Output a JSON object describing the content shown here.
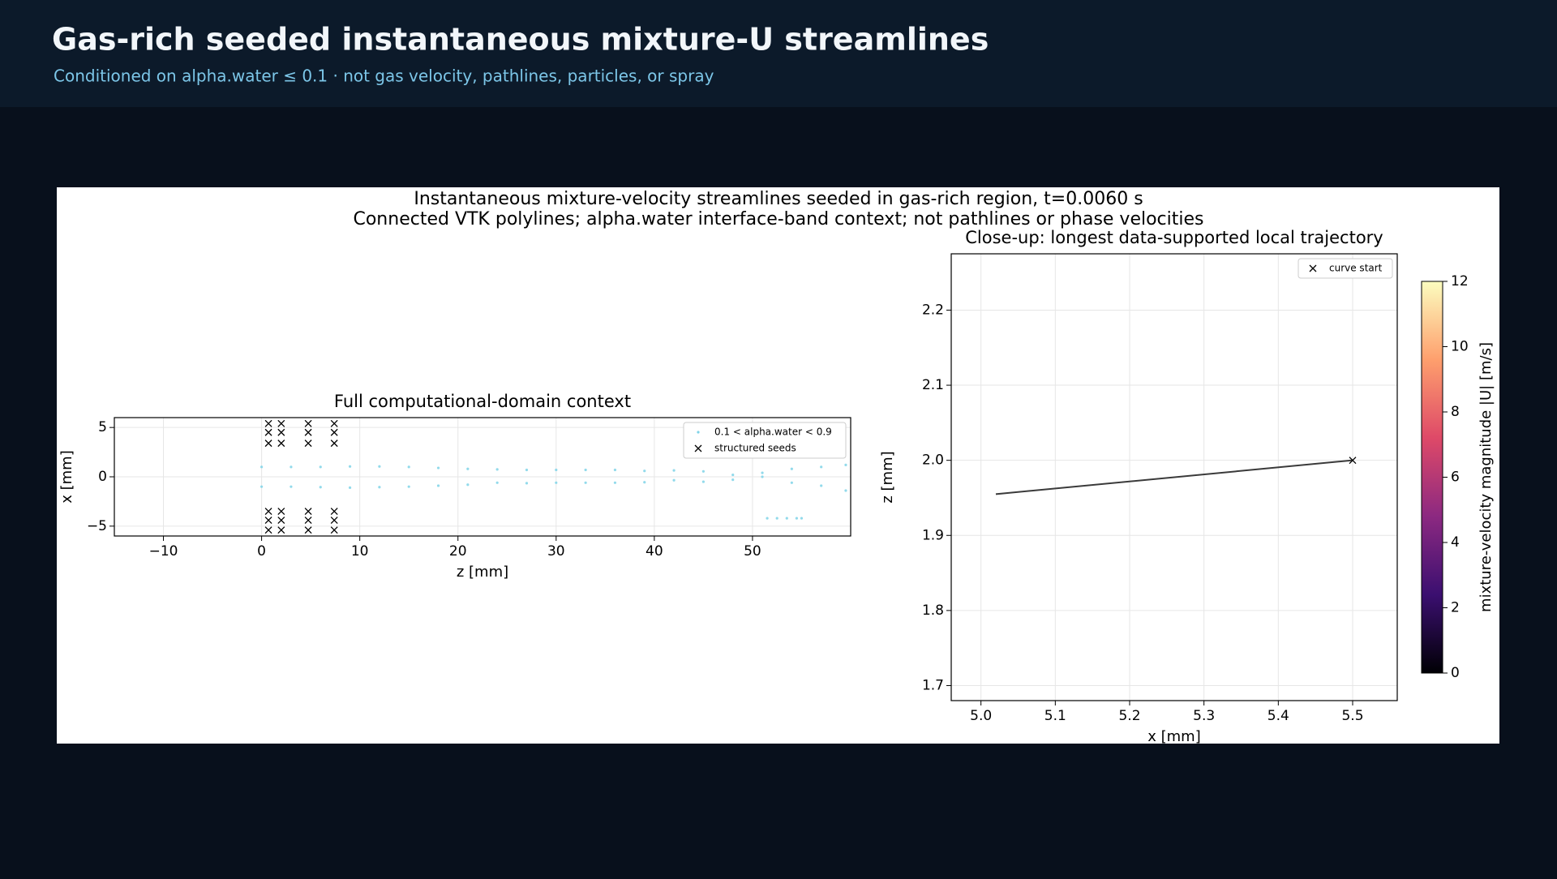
{
  "header": {
    "title": "Gas-rich seeded instantaneous mixture-U streamlines",
    "subtitle": "Conditioned on alpha.water ≤ 0.1 · not gas velocity, pathlines, particles, or spray"
  },
  "figure": {
    "title": [
      "Instantaneous mixture-velocity streamlines seeded in gas-rich region, t=0.0060 s",
      "Connected VTK polylines; alpha.water interface-band context; not pathlines or phase velocities"
    ]
  },
  "chart_data": [
    {
      "type": "scatter",
      "title": "Full computational-domain context",
      "xlabel": "z [mm]",
      "ylabel": "x [mm]",
      "xlim": [
        -15,
        60
      ],
      "ylim": [
        -6,
        6
      ],
      "xticks": [
        {
          "value": -10,
          "label": "−10"
        },
        0,
        10,
        20,
        30,
        40,
        50
      ],
      "yticks": [
        {
          "value": -5,
          "label": "−5"
        },
        0,
        5
      ],
      "grid": true,
      "legend": "upper right",
      "series": [
        {
          "name": "0.1 < alpha.water < 0.9",
          "color": "#7fd3e8",
          "marker": "o",
          "x": [
            0,
            3,
            6,
            9,
            12,
            15,
            18,
            21,
            24,
            27,
            30,
            33,
            36,
            39,
            42,
            45,
            48,
            51,
            54,
            57,
            59.5,
            0,
            3,
            6,
            9,
            12,
            15,
            18,
            21,
            24,
            27,
            30,
            33,
            36,
            39,
            42,
            45,
            48,
            51,
            54,
            57,
            59.5,
            51.5,
            52.5,
            53.5,
            54.5,
            55
          ],
          "values": [
            1.0,
            1.0,
            1.0,
            1.05,
            1.05,
            1.0,
            0.9,
            0.8,
            0.75,
            0.7,
            0.7,
            0.7,
            0.7,
            0.6,
            0.65,
            0.55,
            0.2,
            0.4,
            0.8,
            1.0,
            1.2,
            -1.0,
            -1.0,
            -1.05,
            -1.1,
            -1.05,
            -1.0,
            -0.9,
            -0.8,
            -0.6,
            -0.65,
            -0.6,
            -0.6,
            -0.6,
            -0.55,
            -0.35,
            -0.5,
            -0.3,
            0.0,
            -0.6,
            -0.9,
            -1.4,
            -4.2,
            -4.2,
            -4.2,
            -4.2,
            -4.2
          ]
        },
        {
          "name": "structured seeds",
          "color": "#000000",
          "marker": "x",
          "x": [
            0.7,
            2.0,
            4.75,
            7.4,
            0.7,
            2.0,
            4.75,
            7.4,
            0.7,
            2.0,
            4.75,
            7.4,
            0.7,
            2.0,
            4.75,
            7.4,
            0.7,
            2.0,
            4.75,
            7.4,
            0.7,
            2.0,
            4.75,
            7.4
          ],
          "values": [
            5.4,
            5.4,
            5.4,
            5.4,
            4.5,
            4.5,
            4.5,
            4.5,
            3.4,
            3.4,
            3.4,
            3.4,
            -3.5,
            -3.5,
            -3.5,
            -3.5,
            -4.4,
            -4.4,
            -4.4,
            -4.4,
            -5.4,
            -5.4,
            -5.4,
            -5.4
          ]
        }
      ]
    },
    {
      "type": "line",
      "title": "Close-up: longest data-supported local trajectory",
      "xlabel": "x [mm]",
      "ylabel": "z [mm]",
      "xlim": [
        4.96,
        5.56
      ],
      "ylim": [
        1.68,
        2.275
      ],
      "xticks": [
        {
          "value": 5,
          "label": "5.0"
        },
        5.1,
        5.2,
        5.3,
        5.4,
        5.5
      ],
      "yticks": [
        1.7,
        1.8,
        1.9,
        {
          "value": 2,
          "label": "2.0"
        },
        2.1,
        2.2
      ],
      "grid": true,
      "legend": "upper right",
      "series": [
        {
          "color": "#3a3a3a",
          "x": [
            5.02,
            5.5
          ],
          "values": [
            1.955,
            2.0
          ]
        },
        {
          "name": "curve start",
          "color": "#000000",
          "marker": "x",
          "x": [
            5.5
          ],
          "values": [
            2.0
          ]
        }
      ],
      "colorbar": {
        "label": "mixture-velocity magnitude |U| [m/s]",
        "lim": [
          0,
          12
        ],
        "ticks": [
          0,
          2,
          4,
          6,
          8,
          10,
          12
        ],
        "colormap": "magma"
      }
    }
  ]
}
